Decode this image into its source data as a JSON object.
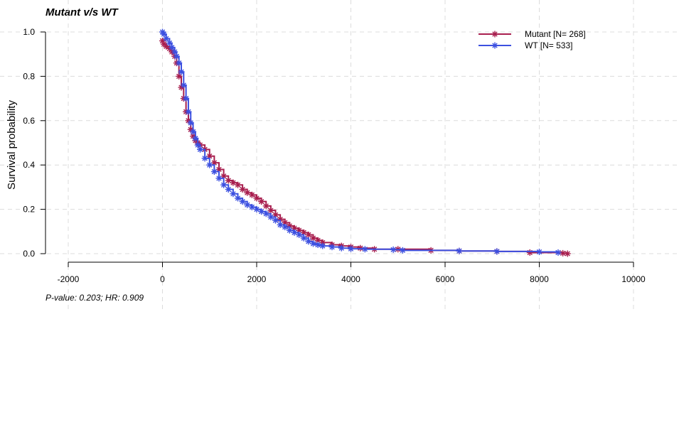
{
  "chart_data": {
    "type": "line",
    "title": "Mutant v/s WT",
    "footnote": "P-value: 0.203; HR: 0.909",
    "xlabel": "",
    "ylabel": "Survival probability",
    "xlim": [
      -2000,
      10000
    ],
    "ylim": [
      0,
      1
    ],
    "xticks": [
      "-2000",
      "0",
      "2000",
      "4000",
      "6000",
      "8000",
      "10000"
    ],
    "yticks": [
      "0.0",
      "0.2",
      "0.4",
      "0.6",
      "0.8",
      "1.0"
    ],
    "grid": true,
    "legend_position": "top-right",
    "series": [
      {
        "name": "Mutant [N= 268]",
        "color": "#a81e4e",
        "marker": "asterisk",
        "x": [
          0,
          30,
          80,
          150,
          200,
          260,
          300,
          350,
          400,
          450,
          500,
          550,
          600,
          650,
          700,
          750,
          800,
          900,
          1000,
          1100,
          1200,
          1300,
          1400,
          1500,
          1600,
          1700,
          1800,
          1900,
          2000,
          2100,
          2200,
          2300,
          2400,
          2500,
          2600,
          2700,
          2800,
          2900,
          3000,
          3100,
          3200,
          3300,
          3400,
          3600,
          3800,
          4000,
          4200,
          4500,
          5000,
          5700,
          6300,
          7100,
          7800,
          8500,
          8600
        ],
        "y": [
          0.96,
          0.945,
          0.935,
          0.925,
          0.91,
          0.89,
          0.86,
          0.8,
          0.75,
          0.7,
          0.64,
          0.6,
          0.56,
          0.53,
          0.51,
          0.5,
          0.49,
          0.47,
          0.44,
          0.41,
          0.38,
          0.35,
          0.33,
          0.32,
          0.31,
          0.29,
          0.275,
          0.265,
          0.25,
          0.235,
          0.215,
          0.195,
          0.175,
          0.155,
          0.14,
          0.125,
          0.115,
          0.105,
          0.095,
          0.085,
          0.07,
          0.06,
          0.05,
          0.04,
          0.035,
          0.03,
          0.025,
          0.02,
          0.02,
          0.015,
          0.012,
          0.01,
          0.005,
          0.002,
          0.0
        ]
      },
      {
        "name": "WT [N= 533]",
        "color": "#3c50e0",
        "marker": "asterisk",
        "x": [
          0,
          30,
          80,
          150,
          200,
          260,
          300,
          350,
          400,
          450,
          500,
          550,
          600,
          650,
          700,
          750,
          800,
          900,
          1000,
          1100,
          1200,
          1300,
          1400,
          1500,
          1600,
          1700,
          1800,
          1900,
          2000,
          2100,
          2200,
          2300,
          2400,
          2500,
          2600,
          2700,
          2800,
          2900,
          3000,
          3100,
          3200,
          3300,
          3400,
          3600,
          3800,
          4000,
          4300,
          4900,
          5100,
          6300,
          7100,
          8000,
          8400
        ],
        "y": [
          1.0,
          0.99,
          0.97,
          0.95,
          0.93,
          0.91,
          0.89,
          0.86,
          0.82,
          0.76,
          0.7,
          0.64,
          0.59,
          0.55,
          0.52,
          0.49,
          0.47,
          0.43,
          0.4,
          0.37,
          0.34,
          0.31,
          0.29,
          0.27,
          0.25,
          0.235,
          0.22,
          0.21,
          0.2,
          0.19,
          0.18,
          0.165,
          0.15,
          0.13,
          0.12,
          0.105,
          0.095,
          0.085,
          0.07,
          0.055,
          0.045,
          0.04,
          0.035,
          0.03,
          0.025,
          0.022,
          0.02,
          0.018,
          0.015,
          0.012,
          0.01,
          0.008,
          0.005
        ]
      }
    ]
  }
}
